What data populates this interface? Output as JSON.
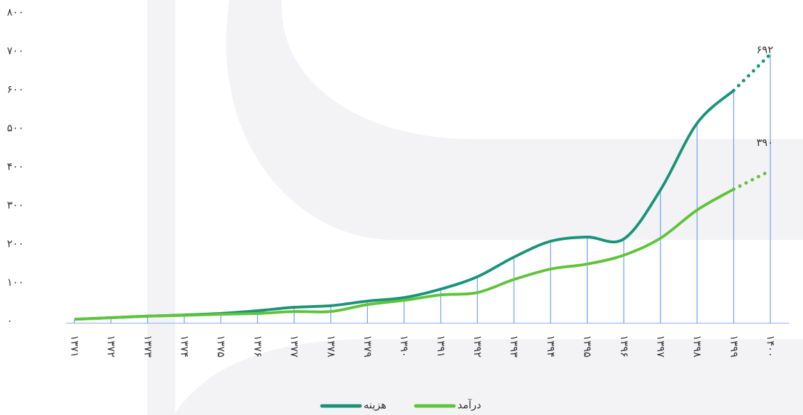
{
  "chart_data": {
    "type": "line",
    "categories": [
      "۱۳۷۱",
      "۱۳۷۲",
      "۱۳۷۳",
      "۱۳۷۴",
      "۱۳۷۵",
      "۱۳۷۶",
      "۱۳۷۷",
      "۱۳۷۸",
      "۱۳۷۹",
      "۱۳۹۰",
      "۱۳۹۱",
      "۱۳۹۲",
      "۱۳۹۳",
      "۱۳۹۴",
      "۱۳۹۵",
      "۱۳۹۶",
      "۱۳۹۷",
      "۱۳۹۸",
      "۱۳۹۹",
      "۱۴۰۰"
    ],
    "series": [
      {
        "name": "هزینه",
        "color": "#1a9478",
        "values": [
          5,
          9,
          13,
          16,
          20,
          27,
          36,
          40,
          52,
          61,
          83,
          115,
          166,
          207,
          218,
          213,
          340,
          513,
          598,
          692
        ],
        "value_labels": [
          null,
          null,
          null,
          null,
          null,
          null,
          null,
          null,
          null,
          null,
          null,
          null,
          null,
          null,
          null,
          null,
          null,
          null,
          null,
          "۶۹۲"
        ]
      },
      {
        "name": "درآمد",
        "color": "#5ec43a",
        "values": [
          5,
          9,
          13,
          15,
          18,
          20,
          25,
          25,
          43,
          54,
          68,
          74,
          108,
          135,
          148,
          171,
          215,
          288,
          342,
          390
        ],
        "value_labels": [
          null,
          null,
          null,
          null,
          null,
          null,
          null,
          null,
          null,
          null,
          null,
          null,
          null,
          null,
          null,
          null,
          null,
          null,
          null,
          "۳۹۰"
        ]
      }
    ],
    "ylim": [
      0,
      800
    ],
    "yticks": [
      {
        "value": 0,
        "label": "۰"
      },
      {
        "value": 100,
        "label": "۱۰۰"
      },
      {
        "value": 200,
        "label": "۲۰۰"
      },
      {
        "value": 300,
        "label": "۳۰۰"
      },
      {
        "value": 400,
        "label": "۴۰۰"
      },
      {
        "value": 500,
        "label": "۵۰۰"
      },
      {
        "value": 600,
        "label": "۶۰۰"
      },
      {
        "value": 700,
        "label": "۷۰۰"
      },
      {
        "value": 800,
        "label": "۸۰۰"
      }
    ],
    "grid": true,
    "legend": "bottom"
  }
}
